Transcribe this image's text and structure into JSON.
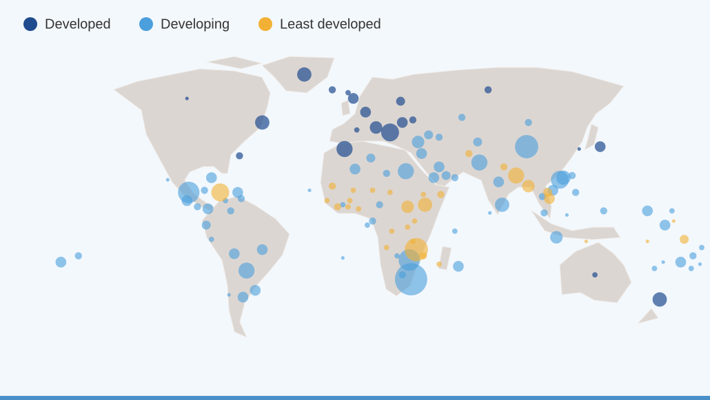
{
  "chart_data": {
    "type": "bubble-map",
    "series": [
      {
        "name": "Developed",
        "color": "#1f4b8f",
        "lon": [
          -27,
          -11,
          -2,
          -94,
          -51,
          -64,
          1,
          8,
          14,
          22,
          28,
          29,
          35,
          -4,
          3,
          78,
          142,
          130,
          139,
          176
        ],
        "lat": [
          63,
          58,
          57,
          55,
          46,
          32,
          55,
          50,
          44,
          42,
          54,
          46,
          47,
          35,
          43,
          58,
          36,
          35,
          -25,
          -36
        ],
        "size": [
          4,
          2,
          1.5,
          1,
          4,
          2,
          3,
          3,
          3.5,
          5,
          2.5,
          3,
          2,
          4.5,
          1.5,
          2,
          3,
          1,
          1.5,
          4
        ]
      },
      {
        "name": "Developing",
        "color": "#4a9fdc",
        "lon": [
          -166,
          -156,
          -105,
          -93,
          -94,
          -80,
          -84,
          -88,
          -82,
          -65,
          -63,
          -69,
          -72,
          -83,
          -80,
          -67,
          -51,
          -60,
          -55,
          -62,
          -70,
          2,
          11,
          20,
          31,
          38,
          44,
          40,
          50,
          50,
          47,
          54,
          59,
          63,
          72,
          73,
          100,
          101,
          84,
          86,
          79,
          119,
          121,
          126,
          128,
          115,
          109,
          110,
          117,
          123,
          61,
          59,
          -5,
          16,
          9,
          12,
          -5,
          -24,
          33,
          34,
          29,
          26,
          144,
          169,
          183,
          179,
          188,
          195,
          194,
          200,
          199,
          173,
          178
        ],
        "lat": [
          -19,
          -16,
          21,
          15,
          11,
          22,
          16,
          8,
          7,
          15,
          12,
          6,
          11,
          -1,
          -8,
          -15,
          -13,
          -23,
          -32,
          -35,
          -34,
          26,
          31,
          24,
          25,
          38,
          41,
          33,
          40,
          27,
          22,
          23,
          22,
          48,
          38,
          29,
          36,
          46,
          20,
          9,
          5,
          21,
          22,
          23,
          15,
          16,
          13,
          5,
          -7,
          4,
          -21,
          -4,
          -17,
          9,
          -1,
          1,
          9,
          16,
          -18,
          -27,
          -25,
          -16,
          6,
          6,
          6,
          -1,
          -19,
          -16,
          -22,
          -12,
          -20,
          -22,
          -19
        ],
        "size": [
          3,
          2,
          1,
          6,
          3,
          3,
          2,
          2,
          3,
          3,
          2,
          2,
          1.5,
          2.5,
          1.5,
          3,
          3,
          4.5,
          3,
          3,
          1,
          3,
          2.5,
          2,
          4.5,
          3.5,
          2.5,
          3,
          2,
          3,
          3,
          2.5,
          2,
          2,
          2.5,
          4.5,
          6.5,
          2,
          3,
          4,
          1,
          5,
          4,
          2,
          2,
          3,
          2,
          2,
          3.5,
          1,
          3,
          1.5,
          1,
          2,
          1.5,
          2,
          1.5,
          1,
          6,
          9,
          2,
          1.5,
          2,
          3,
          1.5,
          3,
          3,
          2,
          1.5,
          1.5,
          1,
          1.5,
          1
        ]
      },
      {
        "name": "Least developed",
        "color": "#f2b134",
        "lon": [
          -75,
          -11,
          1,
          12,
          22,
          32,
          42,
          51,
          41,
          -14,
          -8,
          -2,
          4,
          -1,
          23,
          32,
          36,
          35,
          37,
          41,
          50,
          20,
          67,
          87,
          94,
          101,
          112,
          113,
          134,
          169,
          184,
          190
        ],
        "lat": [
          15,
          18,
          16,
          16,
          15,
          8,
          9,
          14,
          14,
          11,
          8,
          8,
          7,
          11,
          -4,
          -2,
          1,
          -9,
          -13,
          -16,
          -20,
          -12,
          33,
          27,
          23,
          18,
          15,
          12,
          -9,
          -9,
          1,
          -8
        ],
        "size": [
          5,
          2,
          1.5,
          1.5,
          1.5,
          3.5,
          4,
          2,
          1.5,
          1.5,
          2,
          1.5,
          1.5,
          1.5,
          1.5,
          1.5,
          1.5,
          1.5,
          6.5,
          2,
          1.5,
          1.5,
          2,
          2,
          4.5,
          3.5,
          2.5,
          3,
          1,
          1,
          1,
          2.5
        ]
      }
    ]
  }
}
